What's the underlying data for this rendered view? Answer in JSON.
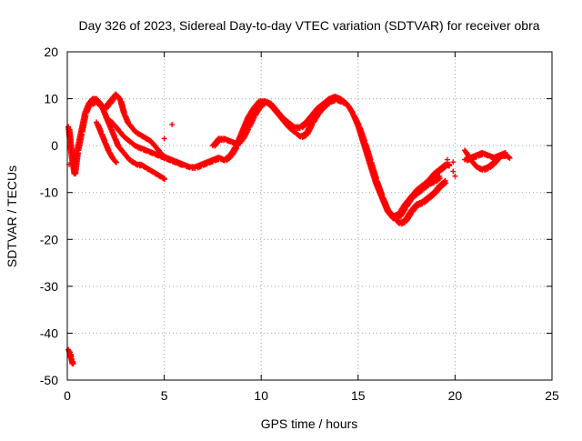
{
  "chart_data": {
    "type": "scatter",
    "title": "Day 326 of 2023, Sidereal Day-to-day VTEC variation (SDTVAR) for receiver obra",
    "xlabel": "GPS time / hours",
    "ylabel": "SDTVAR / TECUs",
    "xlim": [
      0,
      25
    ],
    "ylim": [
      -50,
      20
    ],
    "xticks": [
      0,
      5,
      10,
      15,
      20,
      25
    ],
    "yticks": [
      -50,
      -40,
      -30,
      -20,
      -10,
      0,
      10,
      20
    ],
    "xtick_labels": [
      "0",
      "5",
      "10",
      "15",
      "20",
      "25"
    ],
    "ytick_labels": [
      "-50",
      "-40",
      "-30",
      "-20",
      "-10",
      "0",
      "10",
      "20"
    ],
    "grid": true,
    "marker": "+",
    "color": "#ff0000",
    "series": [
      {
        "name": "main-track",
        "x": [
          0.05,
          0.2,
          0.35,
          0.5,
          0.7,
          0.9,
          1.1,
          1.3,
          1.5,
          1.7,
          1.9,
          2.1,
          2.3,
          2.5,
          2.7,
          2.9,
          3.1,
          3.3,
          3.5,
          3.7,
          3.9,
          4.1,
          4.3,
          4.5,
          4.7,
          4.9,
          5.1,
          5.4,
          5.7,
          6.0,
          6.3,
          6.6,
          6.9,
          7.2,
          7.5,
          7.8,
          8.1,
          8.4,
          8.7,
          9.0,
          9.3,
          9.6,
          9.9,
          10.2,
          10.5,
          10.8,
          11.1,
          11.4,
          11.7,
          12.0,
          12.3,
          12.6,
          12.9,
          13.2,
          13.5,
          13.8,
          14.1,
          14.4,
          14.7,
          15.0,
          15.3,
          15.6,
          15.9,
          16.2,
          16.5,
          16.8,
          17.1,
          17.4,
          17.7,
          18.0,
          18.3,
          18.6,
          18.9,
          19.2,
          19.5,
          19.7
        ],
        "y": [
          4,
          -2,
          -6,
          -1,
          3,
          7,
          9,
          10,
          10,
          9,
          8,
          9,
          10,
          11,
          10,
          7,
          5,
          4,
          3,
          2.5,
          2,
          1.5,
          1,
          0,
          -1,
          -2,
          -2.5,
          -3,
          -3.5,
          -4,
          -4.5,
          -4.5,
          -4,
          -3.5,
          -3,
          -2.5,
          -3,
          -2,
          0,
          3,
          6,
          8,
          9.5,
          9.5,
          8.5,
          7,
          5.5,
          4,
          3,
          2,
          2.5,
          5,
          7,
          8.5,
          9.5,
          10,
          9.5,
          9,
          7,
          4,
          0,
          -4,
          -8,
          -11,
          -14,
          -15.5,
          -15,
          -13,
          -11,
          -9.5,
          -8.5,
          -7.5,
          -6,
          -5,
          -4,
          -4
        ]
      },
      {
        "name": "branch-a",
        "x": [
          1.2,
          1.4,
          1.6,
          1.8,
          2.0,
          2.2,
          2.4,
          2.6,
          2.8,
          3.0,
          3.2,
          3.4,
          3.6,
          3.8,
          4.0,
          4.2,
          4.4,
          4.6,
          4.8,
          5.0
        ],
        "y": [
          9,
          9.5,
          9,
          8,
          6,
          4,
          2,
          0,
          -1,
          -2,
          -3,
          -3.5,
          -4,
          -4,
          -4.5,
          -5,
          -5.5,
          -6,
          -6.5,
          -7
        ]
      },
      {
        "name": "branch-b",
        "x": [
          1.5,
          1.7,
          1.9,
          2.1,
          2.3,
          2.5
        ],
        "y": [
          5,
          3,
          1,
          -1,
          -2.5,
          -3.5
        ]
      },
      {
        "name": "branch-c",
        "x": [
          2.0,
          2.3,
          2.6,
          2.9,
          3.2,
          3.5,
          3.8,
          4.1,
          4.4,
          4.7,
          5.0,
          5.3,
          5.6,
          5.9
        ],
        "y": [
          6,
          5,
          3.5,
          2,
          1,
          0,
          -0.5,
          -1,
          -1.5,
          -2,
          -2.5,
          -3,
          -3.5,
          -4
        ]
      },
      {
        "name": "segment-d",
        "x": [
          7.5,
          7.8,
          8.1,
          8.4,
          8.7,
          9.0,
          9.3,
          9.6,
          9.9,
          10.2,
          10.5,
          10.8,
          11.1,
          11.4,
          11.7,
          12.0,
          12.3,
          12.6,
          12.9,
          13.2,
          13.5,
          13.8,
          14.1,
          14.4,
          14.7,
          15.0,
          15.3,
          15.6,
          15.9,
          16.2,
          16.5,
          16.8,
          17.1,
          17.4,
          17.7,
          18.0,
          18.3,
          18.6,
          18.9,
          19.2
        ],
        "y": [
          0,
          1.5,
          1.5,
          1,
          0.5,
          1.5,
          4,
          6.5,
          8.5,
          9.5,
          9,
          7.5,
          6,
          5,
          4,
          4,
          5,
          6.5,
          8,
          9,
          10,
          10.5,
          10,
          9,
          7,
          4.5,
          1,
          -3,
          -7,
          -10.5,
          -13.5,
          -15,
          -14.5,
          -12.5,
          -11,
          -10,
          -9,
          -8,
          -7.5,
          -6.5
        ]
      },
      {
        "name": "segment-e",
        "x": [
          16.8,
          17.1,
          17.4,
          17.7,
          18.0,
          18.3,
          18.6,
          18.9,
          19.2,
          19.5
        ],
        "y": [
          -15,
          -16.5,
          -16,
          -14,
          -12.5,
          -12,
          -11,
          -10,
          -8.5,
          -7.5
        ]
      },
      {
        "name": "segment-f",
        "x": [
          20.5,
          20.8,
          21.1,
          21.4,
          21.7,
          22.0,
          22.3,
          22.6,
          22.8
        ],
        "y": [
          -3,
          -2.5,
          -2,
          -1.5,
          -2,
          -2.5,
          -2,
          -2,
          -2.5
        ]
      },
      {
        "name": "segment-g",
        "x": [
          20.5,
          20.8,
          21.1,
          21.4,
          21.7,
          22.0,
          22.3,
          22.6
        ],
        "y": [
          -1,
          -3,
          -4.5,
          -5,
          -4.5,
          -3.5,
          -2,
          -1.5
        ]
      },
      {
        "name": "outlier-start",
        "x": [
          0.05,
          0.1,
          0.15,
          0.2,
          0.25
        ],
        "y": [
          -43.5,
          -44,
          -45,
          -45.5,
          -46.5
        ]
      },
      {
        "name": "isolated-points",
        "x": [
          0.05,
          0.1,
          5.0,
          5.4,
          19.6,
          19.9,
          19.9,
          20.0
        ],
        "y": [
          4,
          -4,
          1.5,
          4.5,
          -3,
          -3.5,
          -5.5,
          -6.5
        ]
      }
    ]
  }
}
